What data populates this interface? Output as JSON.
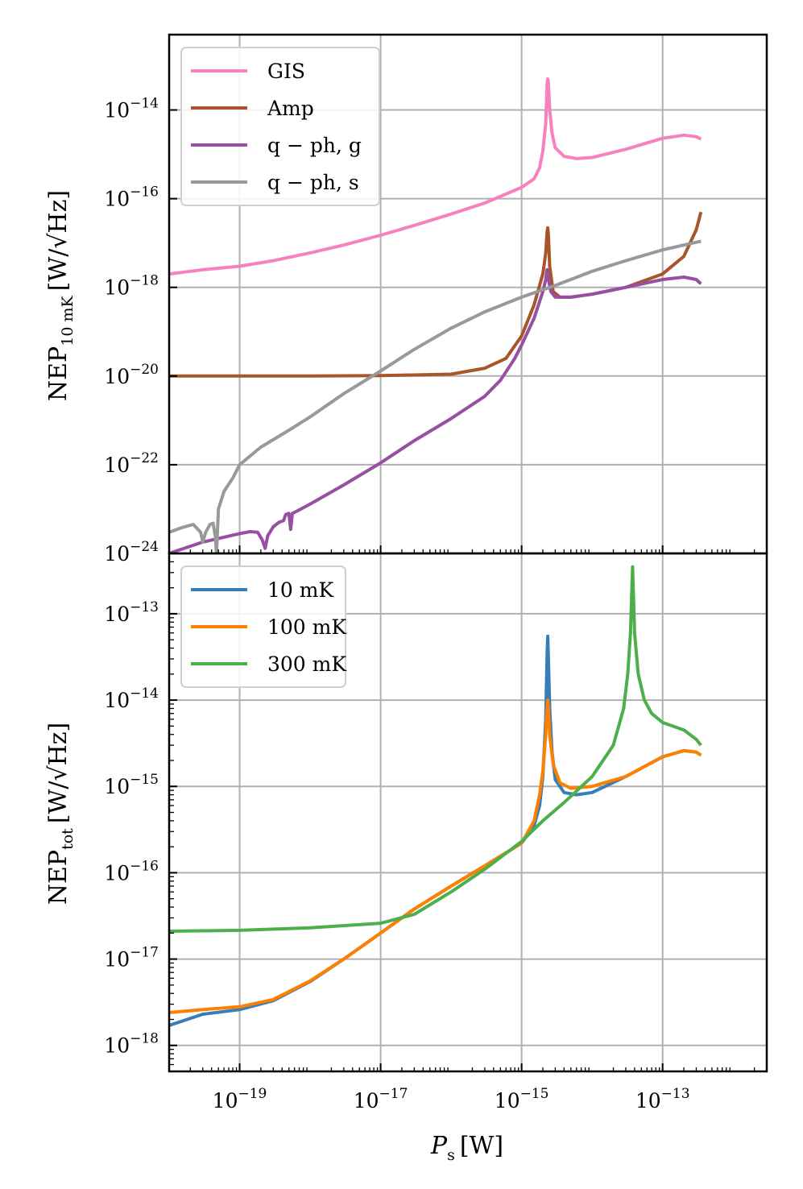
{
  "figure": {
    "xlabel": "P",
    "xlabel_sub": "s",
    "xlabel_unit": "[W]"
  },
  "chart_data": [
    {
      "type": "line",
      "panel": "top",
      "xscale": "log",
      "yscale": "log",
      "xlim": [
        1e-20,
        3e-12
      ],
      "ylim": [
        1e-24,
        5e-13
      ],
      "grid": true,
      "legend_position": "top-left",
      "ylabel": "NEP",
      "ylabel_sub": "10 mK",
      "ylabel_unit": "[W/√Hz]",
      "x_ticks": [
        1e-19,
        1e-17,
        1e-15,
        1e-13
      ],
      "y_ticks": [
        1e-24,
        1e-22,
        1e-20,
        1e-18,
        1e-16,
        1e-14
      ],
      "y_tick_labels": [
        {
          "base": "10",
          "exp": "−24"
        },
        {
          "base": "10",
          "exp": "−22"
        },
        {
          "base": "10",
          "exp": "−20"
        },
        {
          "base": "10",
          "exp": "−18"
        },
        {
          "base": "10",
          "exp": "−16"
        },
        {
          "base": "10",
          "exp": "−14"
        }
      ],
      "series": [
        {
          "name": "GIS",
          "color": "#f781bf",
          "points": [
            [
              1e-20,
              2e-18
            ],
            [
              3e-20,
              2.5e-18
            ],
            [
              1e-19,
              3e-18
            ],
            [
              3e-19,
              4e-18
            ],
            [
              1e-18,
              6e-18
            ],
            [
              3e-18,
              9e-18
            ],
            [
              1e-17,
              1.5e-17
            ],
            [
              3e-17,
              2.5e-17
            ],
            [
              1e-16,
              4.5e-17
            ],
            [
              3e-16,
              8e-17
            ],
            [
              1e-15,
              1.8e-16
            ],
            [
              1.5e-15,
              2.8e-16
            ],
            [
              1.8e-15,
              5e-16
            ],
            [
              2e-15,
              1.2e-15
            ],
            [
              2.2e-15,
              5e-15
            ],
            [
              2.3e-15,
              4e-14
            ],
            [
              2.35e-15,
              5e-14
            ],
            [
              2.4e-15,
              4e-14
            ],
            [
              2.5e-15,
              1e-14
            ],
            [
              2.7e-15,
              3e-15
            ],
            [
              3e-15,
              1.4e-15
            ],
            [
              4e-15,
              9e-16
            ],
            [
              6e-15,
              8e-16
            ],
            [
              1e-14,
              8.5e-16
            ],
            [
              3e-14,
              1.3e-15
            ],
            [
              1e-13,
              2.3e-15
            ],
            [
              2e-13,
              2.7e-15
            ],
            [
              3e-13,
              2.5e-15
            ],
            [
              3.5e-13,
              2.2e-15
            ]
          ]
        },
        {
          "name": "Amp",
          "color": "#a65628",
          "points": [
            [
              1e-20,
              1e-20
            ],
            [
              1e-19,
              1e-20
            ],
            [
              1e-18,
              1e-20
            ],
            [
              1e-17,
              1.02e-20
            ],
            [
              1e-16,
              1.1e-20
            ],
            [
              3e-16,
              1.5e-20
            ],
            [
              6e-16,
              2.5e-20
            ],
            [
              1e-15,
              8e-20
            ],
            [
              1.5e-15,
              4e-19
            ],
            [
              2e-15,
              2e-18
            ],
            [
              2.2e-15,
              6e-18
            ],
            [
              2.3e-15,
              1.8e-17
            ],
            [
              2.35e-15,
              2.2e-17
            ],
            [
              2.4e-15,
              1.5e-17
            ],
            [
              2.5e-15,
              3e-18
            ],
            [
              2.8e-15,
              8e-19
            ],
            [
              3.5e-15,
              6e-19
            ],
            [
              5e-15,
              6e-19
            ],
            [
              1e-14,
              7e-19
            ],
            [
              3e-14,
              1e-18
            ],
            [
              1e-13,
              2e-18
            ],
            [
              2e-13,
              5e-18
            ],
            [
              3e-13,
              2e-17
            ],
            [
              3.5e-13,
              5e-17
            ]
          ]
        },
        {
          "name": "q − ph, g",
          "color": "#984ea3",
          "points": [
            [
              1e-20,
              1e-24
            ],
            [
              3e-20,
              1.8e-24
            ],
            [
              1e-19,
              2.8e-24
            ],
            [
              1.4e-19,
              3.1e-24
            ],
            [
              1.8e-19,
              3e-24
            ],
            [
              2.1e-19,
              2e-24
            ],
            [
              2.3e-19,
              1.3e-24
            ],
            [
              2.5e-19,
              2.5e-24
            ],
            [
              3e-19,
              4e-24
            ],
            [
              3.6e-19,
              5e-24
            ],
            [
              4.2e-19,
              5.5e-24
            ],
            [
              4.5e-19,
              7.5e-24
            ],
            [
              5e-19,
              8e-24
            ],
            [
              5.3e-19,
              3.5e-24
            ],
            [
              5.6e-19,
              8e-24
            ],
            [
              6.5e-19,
              9e-24
            ],
            [
              1e-18,
              1.3e-23
            ],
            [
              3e-18,
              3.5e-23
            ],
            [
              1e-17,
              1.1e-22
            ],
            [
              3e-17,
              3.5e-22
            ],
            [
              1e-16,
              1.1e-21
            ],
            [
              3e-16,
              3.5e-21
            ],
            [
              5e-16,
              8e-21
            ],
            [
              8e-16,
              2.5e-20
            ],
            [
              1e-15,
              5e-20
            ],
            [
              1.5e-15,
              2e-19
            ],
            [
              2e-15,
              8e-19
            ],
            [
              2.2e-15,
              1.5e-18
            ],
            [
              2.3e-15,
              2.5e-18
            ],
            [
              2.4e-15,
              1.5e-18
            ],
            [
              2.6e-15,
              8e-19
            ],
            [
              3e-15,
              6e-19
            ],
            [
              5e-15,
              6e-19
            ],
            [
              1e-14,
              7e-19
            ],
            [
              3e-14,
              1e-18
            ],
            [
              1e-13,
              1.5e-18
            ],
            [
              2e-13,
              1.7e-18
            ],
            [
              3e-13,
              1.5e-18
            ],
            [
              3.5e-13,
              1.2e-18
            ]
          ]
        },
        {
          "name": "q − ph, s",
          "color": "#999999",
          "points": [
            [
              1e-20,
              3e-24
            ],
            [
              1.5e-20,
              3.8e-24
            ],
            [
              2.2e-20,
              4.5e-24
            ],
            [
              2.8e-20,
              3e-24
            ],
            [
              3e-20,
              1.8e-24
            ],
            [
              3.3e-20,
              3e-24
            ],
            [
              3.8e-20,
              4.5e-24
            ],
            [
              4.2e-20,
              4.8e-24
            ],
            [
              4.5e-20,
              2.5e-24
            ],
            [
              4.7e-20,
              1e-24
            ],
            [
              5e-20,
              1e-23
            ],
            [
              6e-20,
              2.5e-23
            ],
            [
              8e-20,
              5e-23
            ],
            [
              1e-19,
              1e-22
            ],
            [
              2e-19,
              2.5e-22
            ],
            [
              5e-19,
              6e-22
            ],
            [
              1e-18,
              1.2e-21
            ],
            [
              3e-18,
              4e-21
            ],
            [
              1e-17,
              1.3e-20
            ],
            [
              3e-17,
              4e-20
            ],
            [
              1e-16,
              1.2e-19
            ],
            [
              3e-16,
              2.8e-19
            ],
            [
              1e-15,
              6e-19
            ],
            [
              3e-15,
              1.1e-18
            ],
            [
              1e-14,
              2.3e-18
            ],
            [
              3e-14,
              4e-18
            ],
            [
              1e-13,
              7e-18
            ],
            [
              2e-13,
              9e-18
            ],
            [
              3.5e-13,
              1.1e-17
            ]
          ]
        }
      ]
    },
    {
      "type": "line",
      "panel": "bottom",
      "xscale": "log",
      "yscale": "log",
      "xlim": [
        1e-20,
        3e-12
      ],
      "ylim": [
        5e-19,
        5e-13
      ],
      "grid": true,
      "legend_position": "top-left",
      "ylabel": "NEP",
      "ylabel_sub": "tot",
      "ylabel_unit": "[W/√Hz]",
      "x_ticks": [
        1e-19,
        1e-17,
        1e-15,
        1e-13
      ],
      "x_tick_labels": [
        {
          "base": "10",
          "exp": "−19"
        },
        {
          "base": "10",
          "exp": "−17"
        },
        {
          "base": "10",
          "exp": "−15"
        },
        {
          "base": "10",
          "exp": "−13"
        }
      ],
      "y_ticks": [
        1e-18,
        1e-17,
        1e-16,
        1e-15,
        1e-14,
        1e-13
      ],
      "y_tick_labels": [
        {
          "base": "10",
          "exp": "−18"
        },
        {
          "base": "10",
          "exp": "−17"
        },
        {
          "base": "10",
          "exp": "−16"
        },
        {
          "base": "10",
          "exp": "−15"
        },
        {
          "base": "10",
          "exp": "−14"
        },
        {
          "base": "10",
          "exp": "−13"
        }
      ],
      "series": [
        {
          "name": "10 mK",
          "color": "#377eb8",
          "points": [
            [
              1e-20,
              1.7e-18
            ],
            [
              3e-20,
              2.3e-18
            ],
            [
              1e-19,
              2.6e-18
            ],
            [
              3e-19,
              3.3e-18
            ],
            [
              1e-18,
              5.5e-18
            ],
            [
              3e-18,
              1e-17
            ],
            [
              1e-17,
              2e-17
            ],
            [
              3e-17,
              3.8e-17
            ],
            [
              1e-16,
              7e-17
            ],
            [
              3e-16,
              1.2e-16
            ],
            [
              1e-15,
              2.2e-16
            ],
            [
              1.5e-15,
              3.5e-16
            ],
            [
              1.8e-15,
              6e-16
            ],
            [
              2e-15,
              1.3e-15
            ],
            [
              2.2e-15,
              6e-15
            ],
            [
              2.3e-15,
              3.5e-14
            ],
            [
              2.35e-15,
              5.5e-14
            ],
            [
              2.4e-15,
              3e-14
            ],
            [
              2.5e-15,
              8e-15
            ],
            [
              2.7e-15,
              2.5e-15
            ],
            [
              3e-15,
              1.2e-15
            ],
            [
              4e-15,
              8.5e-16
            ],
            [
              6e-15,
              8e-16
            ],
            [
              1e-14,
              8.5e-16
            ],
            [
              3e-14,
              1.3e-15
            ],
            [
              1e-13,
              2.2e-15
            ],
            [
              2e-13,
              2.6e-15
            ],
            [
              3e-13,
              2.5e-15
            ],
            [
              3.5e-13,
              2.3e-15
            ]
          ]
        },
        {
          "name": "100 mK",
          "color": "#ff7f00",
          "points": [
            [
              1e-20,
              2.4e-18
            ],
            [
              3e-20,
              2.6e-18
            ],
            [
              1e-19,
              2.8e-18
            ],
            [
              3e-19,
              3.4e-18
            ],
            [
              1e-18,
              5.6e-18
            ],
            [
              3e-18,
              1e-17
            ],
            [
              1e-17,
              2e-17
            ],
            [
              3e-17,
              3.8e-17
            ],
            [
              1e-16,
              7e-17
            ],
            [
              3e-16,
              1.2e-16
            ],
            [
              1e-15,
              2.2e-16
            ],
            [
              1.5e-15,
              4e-16
            ],
            [
              1.8e-15,
              8e-16
            ],
            [
              2e-15,
              1.5e-15
            ],
            [
              2.2e-15,
              4e-15
            ],
            [
              2.3e-15,
              8e-15
            ],
            [
              2.35e-15,
              1e-14
            ],
            [
              2.4e-15,
              8e-15
            ],
            [
              2.5e-15,
              4e-15
            ],
            [
              2.8e-15,
              1.8e-15
            ],
            [
              3.5e-15,
              1.1e-15
            ],
            [
              5e-15,
              9.5e-16
            ],
            [
              1e-14,
              1e-15
            ],
            [
              3e-14,
              1.3e-15
            ],
            [
              1e-13,
              2.2e-15
            ],
            [
              2e-13,
              2.6e-15
            ],
            [
              3e-13,
              2.5e-15
            ],
            [
              3.5e-13,
              2.3e-15
            ]
          ]
        },
        {
          "name": "300 mK",
          "color": "#4daf4a",
          "points": [
            [
              1e-20,
              2.1e-17
            ],
            [
              1e-19,
              2.15e-17
            ],
            [
              1e-18,
              2.3e-17
            ],
            [
              1e-17,
              2.6e-17
            ],
            [
              3e-17,
              3.3e-17
            ],
            [
              1e-16,
              6e-17
            ],
            [
              3e-16,
              1.1e-16
            ],
            [
              1e-15,
              2.3e-16
            ],
            [
              2e-15,
              4e-16
            ],
            [
              4e-15,
              6.5e-16
            ],
            [
              1e-14,
              1.3e-15
            ],
            [
              2e-14,
              3e-15
            ],
            [
              2.8e-14,
              8e-15
            ],
            [
              3.2e-14,
              2e-14
            ],
            [
              3.5e-14,
              6e-14
            ],
            [
              3.7e-14,
              2.5e-13
            ],
            [
              3.75e-14,
              3.5e-13
            ],
            [
              3.8e-14,
              2.5e-13
            ],
            [
              4e-14,
              6e-14
            ],
            [
              4.5e-14,
              2e-14
            ],
            [
              5.5e-14,
              1e-14
            ],
            [
              7e-14,
              7e-15
            ],
            [
              1e-13,
              5.5e-15
            ],
            [
              2e-13,
              4.5e-15
            ],
            [
              3e-13,
              3.5e-15
            ],
            [
              3.5e-13,
              3e-15
            ]
          ]
        }
      ]
    }
  ]
}
